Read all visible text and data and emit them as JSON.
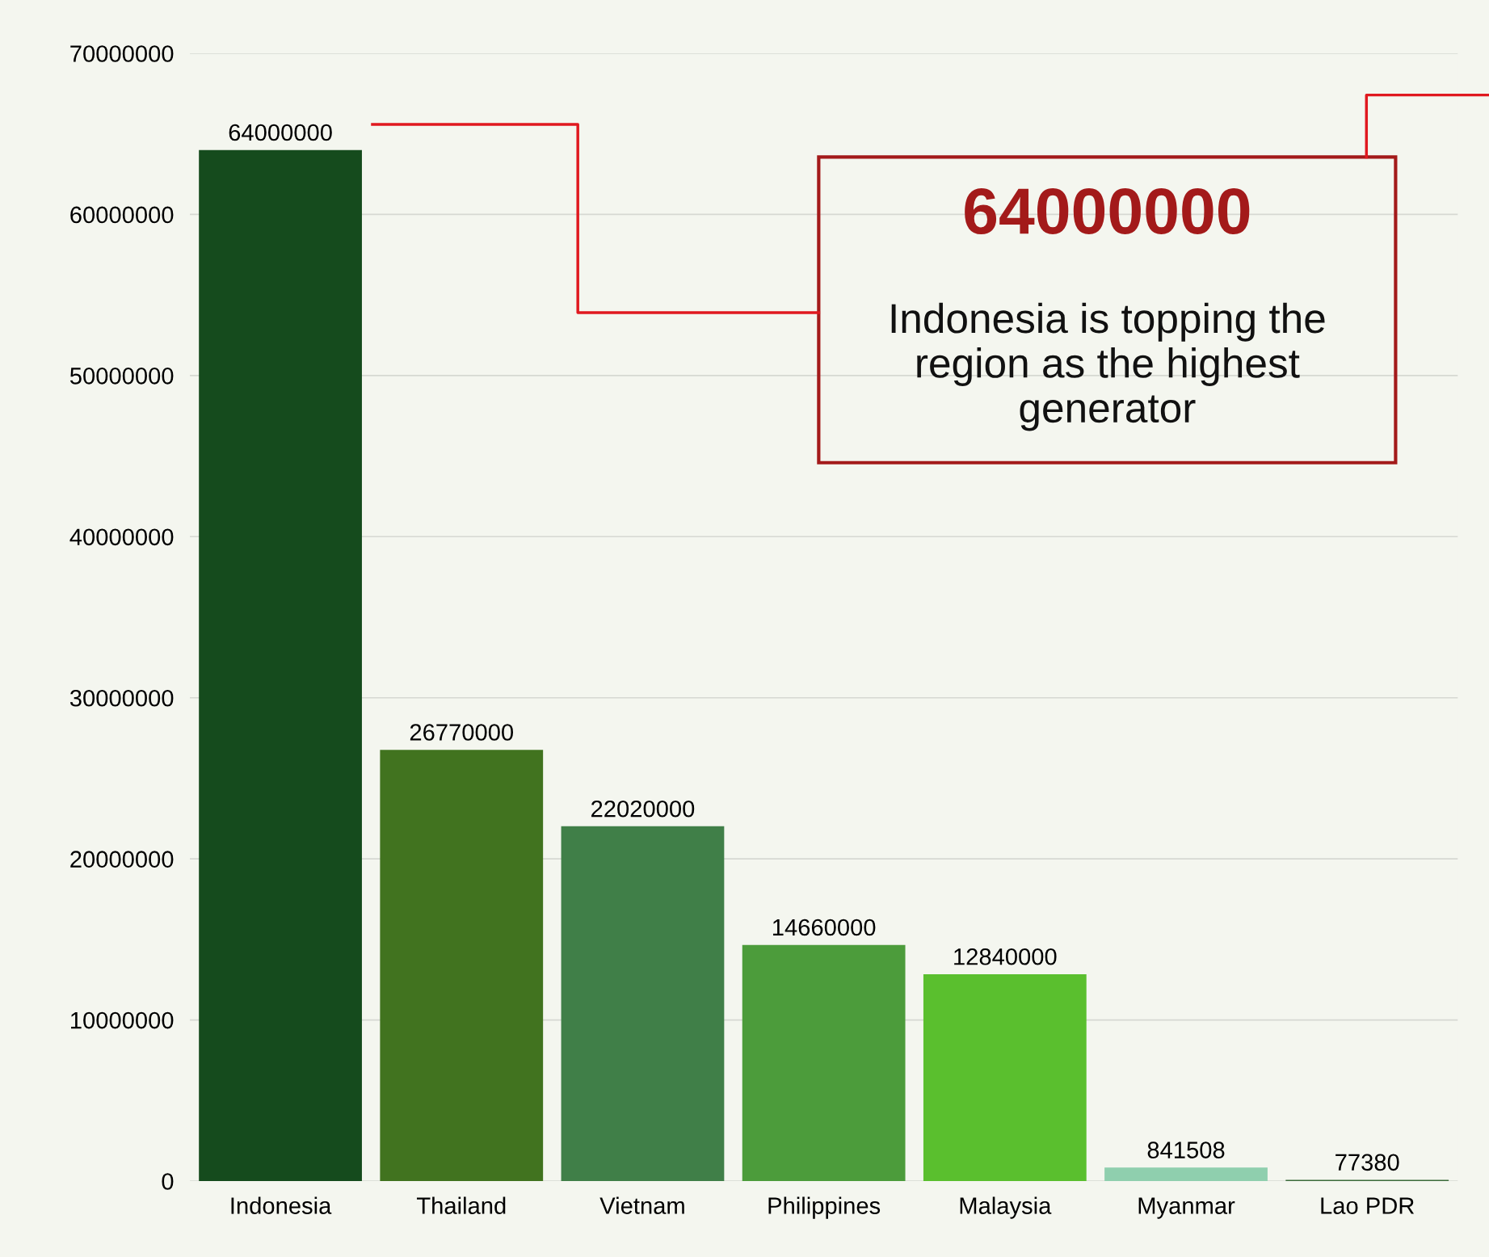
{
  "chart_data": {
    "type": "bar",
    "categories": [
      "Indonesia",
      "Thailand",
      "Vietnam",
      "Philippines",
      "Malaysia",
      "Myanmar",
      "Lao PDR"
    ],
    "values": [
      64000000,
      26770000,
      22020000,
      14660000,
      12840000,
      841508,
      77380
    ],
    "colors": [
      "#154b1d",
      "#41731f",
      "#407f48",
      "#4c9c3b",
      "#5abf2e",
      "#8fcfae",
      "#3a6b3a"
    ],
    "ylim": [
      0,
      70000000
    ],
    "yticks": [
      0,
      10000000,
      20000000,
      30000000,
      40000000,
      50000000,
      60000000,
      70000000
    ],
    "grid": "y",
    "data_labels": true,
    "annotations": [
      "64000000",
      "Indonesia is topping the region as the highest generator"
    ]
  }
}
